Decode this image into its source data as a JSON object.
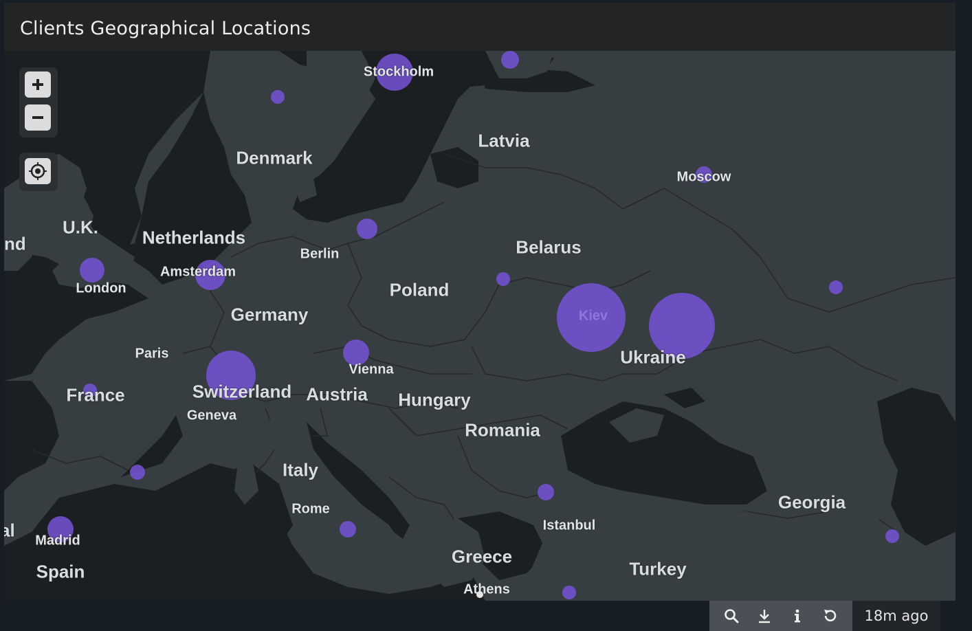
{
  "panel": {
    "title": "Clients Geographical Locations"
  },
  "controls": {
    "zoom_in": "zoom-in",
    "zoom_out": "zoom-out",
    "locate": "locate"
  },
  "labels": {
    "countries": [
      "Denmark",
      "Latvia",
      "U.K.",
      "Netherlands",
      "Belarus",
      "Poland",
      "Germany",
      "Ukraine",
      "France",
      "Switzerland",
      "Austria",
      "Hungary",
      "Romania",
      "Italy",
      "Georgia",
      "Greece",
      "Turkey",
      "Spain"
    ],
    "cities": [
      "Stockholm",
      "Moscow",
      "Berlin",
      "Amsterdam",
      "London",
      "Kiev",
      "Paris",
      "Vienna",
      "Geneva",
      "Rome",
      "Istanbul",
      "Madrid",
      "Athens"
    ],
    "edge": [
      "nd",
      "al"
    ]
  },
  "footer": {
    "last_updated": "18m ago",
    "icons": [
      "search-icon",
      "download-icon",
      "info-icon",
      "refresh-icon"
    ]
  },
  "colors": {
    "bubble": "#7452d1",
    "land": "#373e42",
    "water": "#1c1f21",
    "header": "#222426"
  }
}
